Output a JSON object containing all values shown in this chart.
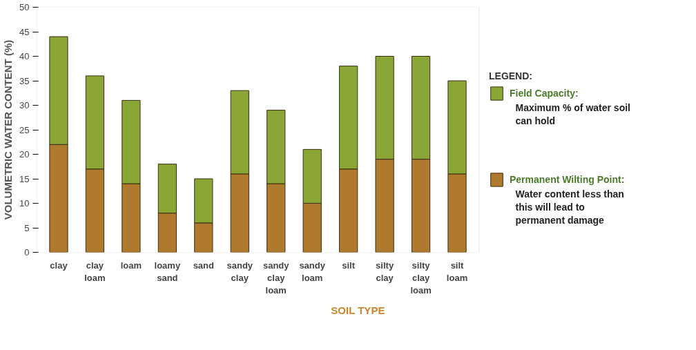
{
  "chart_data": {
    "type": "bar",
    "stacked": true,
    "xlabel": "SOIL TYPE",
    "ylabel": "VOLUMETRIC WATER CONTENT (%)",
    "legend_title": "LEGEND:",
    "legend": "right",
    "categories": [
      "clay",
      "clay loam",
      "loam",
      "loamy sand",
      "sand",
      "sandy clay",
      "sandy clay loam",
      "sandy loam",
      "silt",
      "silty clay",
      "silty clay loam",
      "silt loam"
    ],
    "series": [
      {
        "name": "Permanent Wilting Point:",
        "color": "#b07a2e",
        "values": [
          22,
          17,
          14,
          8,
          6,
          16,
          14,
          10,
          17,
          19,
          19,
          16
        ]
      },
      {
        "name": "Field Capacity:",
        "color": "#8aa636",
        "values": [
          22,
          19,
          17,
          10,
          9,
          17,
          15,
          11,
          21,
          21,
          21,
          19
        ]
      }
    ],
    "annotations": [
      "Water content less than this will lead to permanent damage",
      "Maximum % of water soil can hold"
    ],
    "ylim": [
      0,
      50
    ],
    "yticks": [
      0,
      5,
      10,
      15,
      20,
      25,
      30,
      35,
      40,
      45,
      50
    ],
    "grid": false
  }
}
